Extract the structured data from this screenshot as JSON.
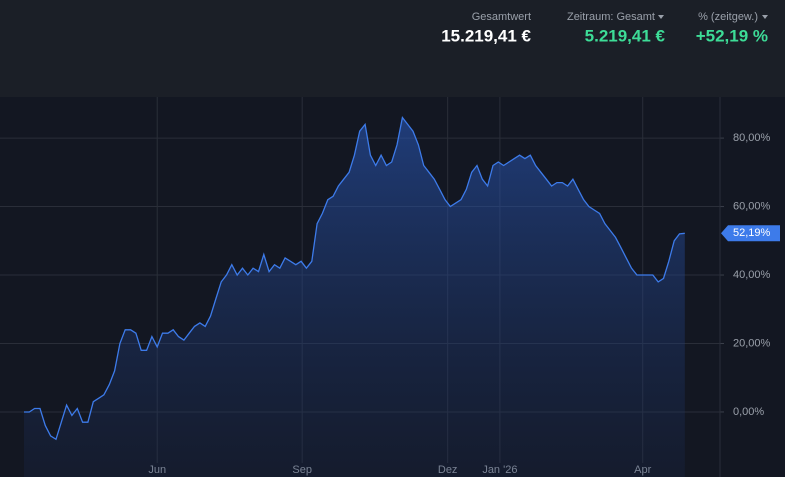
{
  "header": {
    "items": [
      {
        "label": "Gesamtwert",
        "value": "15.219,41 €"
      },
      {
        "label": "Zeitraum: Gesamt",
        "value": "5.219,41 €"
      },
      {
        "label": "% (zeitgew.)",
        "value": "+52,19 %"
      }
    ]
  },
  "chart_data": {
    "type": "area",
    "color": "#3d7bea",
    "series": [
      {
        "values": [
          0,
          0,
          1,
          1,
          -4,
          -7,
          -8,
          -3,
          2,
          -1,
          1,
          -3,
          -3,
          3,
          4,
          5,
          8,
          12,
          20,
          24,
          24,
          23,
          18,
          18,
          22,
          19,
          23,
          23,
          24,
          22,
          21,
          23,
          25,
          26,
          25,
          28,
          33,
          38,
          40,
          43,
          40,
          42,
          40,
          42,
          41,
          46,
          41,
          43,
          42,
          45,
          44,
          43,
          44,
          42,
          44,
          55,
          58,
          62,
          63,
          66,
          68,
          70,
          75,
          82,
          84,
          75,
          72,
          75,
          72,
          73,
          78,
          86,
          84,
          82,
          78,
          72,
          70,
          68,
          65,
          62,
          60,
          61,
          62,
          65,
          70,
          72,
          68,
          66,
          72,
          73,
          72,
          73,
          74,
          75,
          74,
          75,
          72,
          70,
          68,
          66,
          67,
          67,
          66,
          68,
          65,
          62,
          60,
          59,
          58,
          55,
          53,
          51,
          48,
          45,
          42,
          40,
          40,
          40,
          40,
          38,
          39,
          44,
          50,
          52,
          52.19
        ],
        "value_labels": {
          "124": "52,19%"
        }
      }
    ],
    "xlim": [
      -4.5,
      130.6
    ],
    "xticks": [
      {
        "value": 25,
        "label": "Jun"
      },
      {
        "value": 52.2,
        "label": "Sep"
      },
      {
        "value": 79.5,
        "label": "Dez"
      },
      {
        "value": 89.3,
        "label": "Jan '26"
      },
      {
        "value": 116.1,
        "label": "Apr"
      }
    ],
    "ylim": [
      -19,
      92
    ],
    "yticks": [
      {
        "value": 0,
        "label": "0,00%"
      },
      {
        "value": 20,
        "label": "20,00%"
      },
      {
        "value": 40,
        "label": "40,00%"
      },
      {
        "value": 60,
        "label": "60,00%"
      },
      {
        "value": 80,
        "label": "80,00%"
      }
    ],
    "grid": true
  }
}
